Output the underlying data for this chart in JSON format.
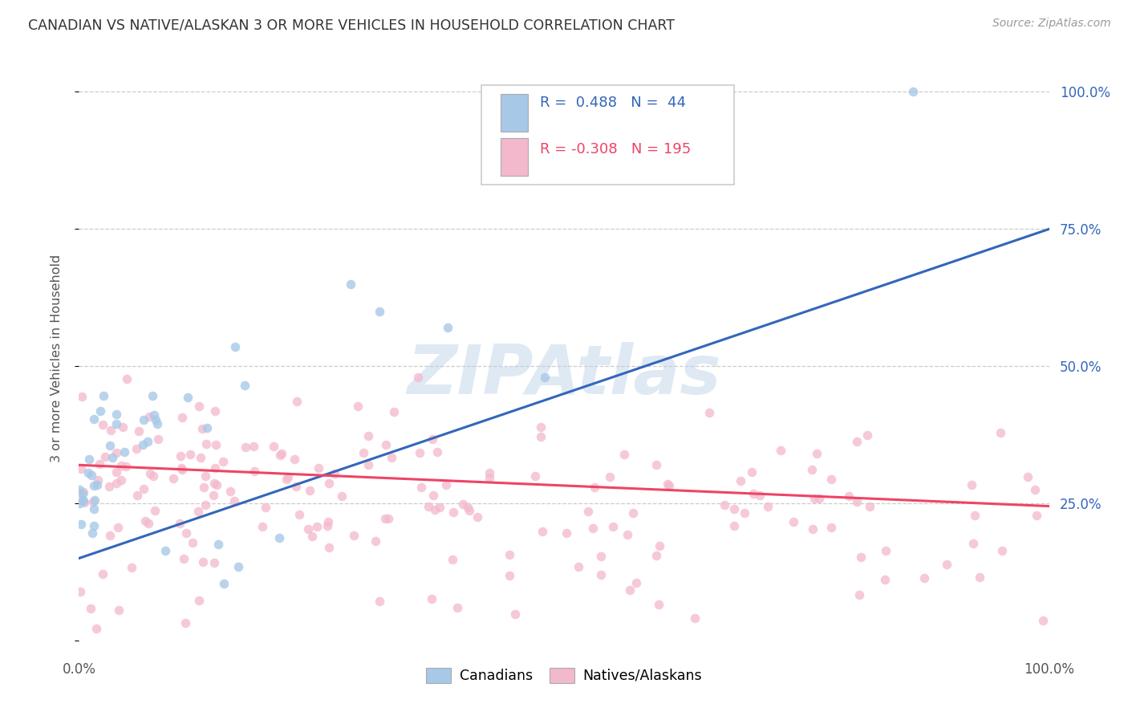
{
  "title": "CANADIAN VS NATIVE/ALASKAN 3 OR MORE VEHICLES IN HOUSEHOLD CORRELATION CHART",
  "source": "Source: ZipAtlas.com",
  "ylabel": "3 or more Vehicles in Household",
  "watermark": "ZIPAtlas",
  "xlim": [
    0.0,
    1.0
  ],
  "ylim": [
    -0.02,
    1.05
  ],
  "blue_R": 0.488,
  "blue_N": 44,
  "pink_R": -0.308,
  "pink_N": 195,
  "blue_scatter_color": "#a8c8e8",
  "pink_scatter_color": "#f4b8cc",
  "blue_line_color": "#3366bb",
  "pink_line_color": "#ee4466",
  "blue_text_color": "#3366bb",
  "pink_text_color": "#ee4466",
  "legend_label_blue": "Canadians",
  "legend_label_pink": "Natives/Alaskans",
  "grid_color": "#cccccc",
  "background_color": "#ffffff",
  "title_color": "#333333",
  "source_color": "#999999",
  "right_tick_color": "#3366bb",
  "blue_line_y0": 0.15,
  "blue_line_y1": 0.75,
  "pink_line_y0": 0.32,
  "pink_line_y1": 0.245
}
